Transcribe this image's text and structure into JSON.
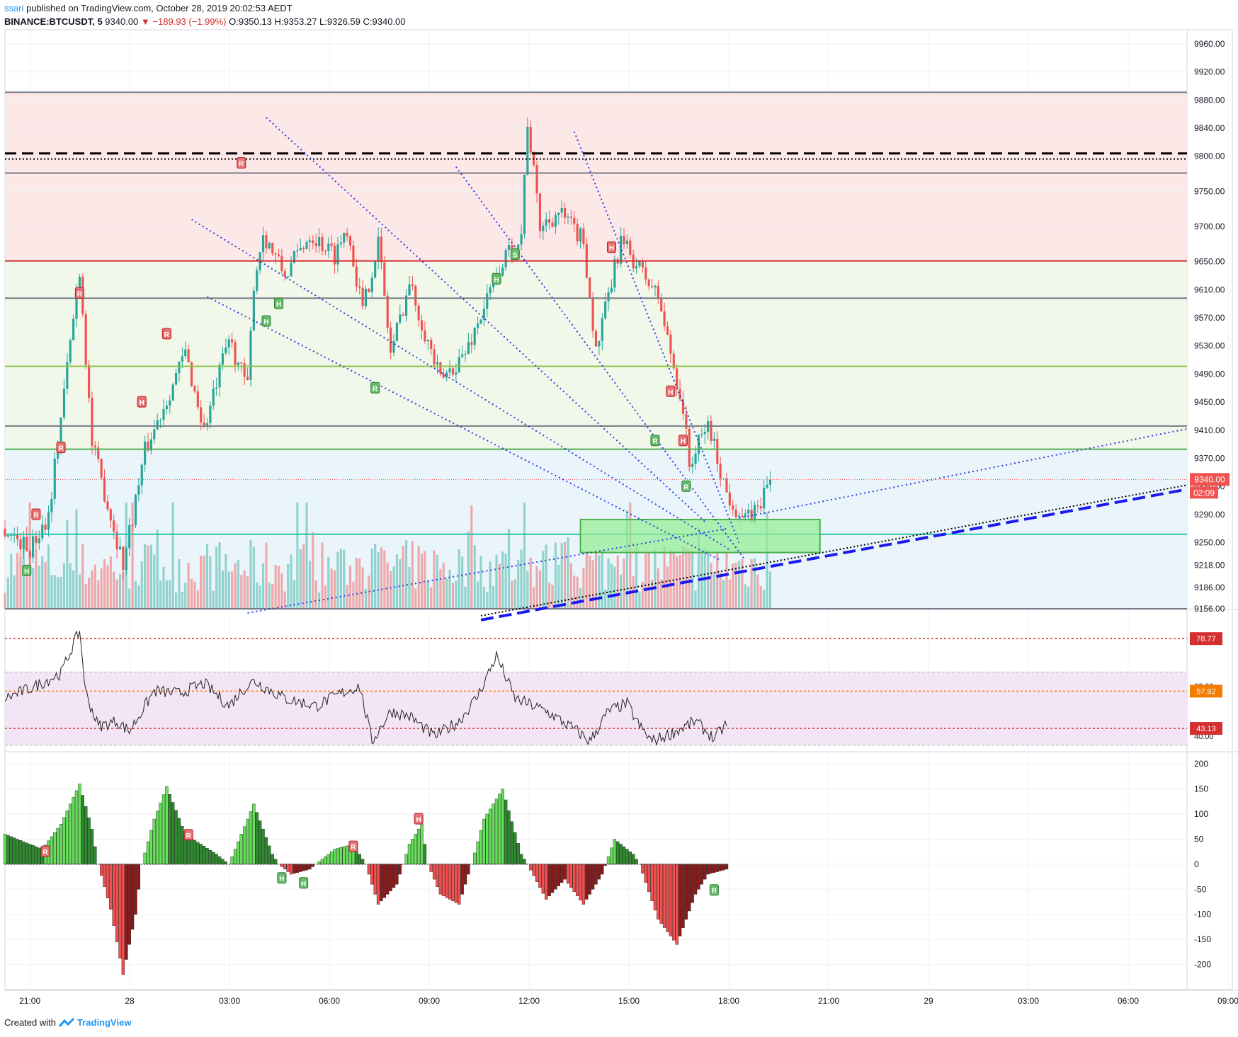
{
  "header": {
    "user": "ssari",
    "published": "published on TradingView.com, October 28, 2019 20:02:53 AEDT",
    "symbol": "BINANCE:BTCUSDT, 5",
    "last": "9340.00",
    "change_arrow": "▼",
    "change": "−189.93 (−1.99%)",
    "ohlc": "O:9350.13 H:9353.27 L:9326.59 C:9340.00"
  },
  "footer": {
    "created": "Created with",
    "brand": "TradingView",
    "logo_icon": "tradingview-logo-icon"
  },
  "colors": {
    "up": "#26a69a",
    "down": "#ef5350",
    "up_vol": "#80cbc4",
    "down_vol": "#ef9a9a",
    "blue_trend": "#1a1aee"
  },
  "chart_data": [
    {
      "type": "candlestick",
      "title": "",
      "y_ticks": [
        "9960.00",
        "9920.00",
        "9880.00",
        "9840.00",
        "9800.00",
        "9750.00",
        "9700.00",
        "9650.00",
        "9610.00",
        "9570.00",
        "9530.00",
        "9490.00",
        "9450.00",
        "9410.00",
        "9370.00",
        "9330.00",
        "9290.00",
        "9250.00",
        "9218.00",
        "9186.00",
        "9156.00"
      ],
      "x_ticks": [
        "21:00",
        "28",
        "03:00",
        "06:00",
        "09:00",
        "12:00",
        "15:00",
        "18:00",
        "21:00",
        "29",
        "03:00",
        "06:00",
        "09:00"
      ],
      "ylim": [
        9156,
        9980
      ],
      "price_label": "9340.00",
      "countdown_label": "02:09",
      "horizontal_levels": [
        {
          "price": 9891,
          "color": "#787b86",
          "style": "solid"
        },
        {
          "price": 9804,
          "color": "#000000",
          "style": "dashed"
        },
        {
          "price": 9796,
          "color": "#000000",
          "style": "dotted"
        },
        {
          "price": 9776,
          "color": "#787b86",
          "style": "solid"
        },
        {
          "price": 9651,
          "color": "#d32f2f",
          "style": "solid"
        },
        {
          "price": 9598,
          "color": "#787b86",
          "style": "solid"
        },
        {
          "price": 9501,
          "color": "#8bc34a",
          "style": "solid"
        },
        {
          "price": 9416,
          "color": "#787b86",
          "style": "solid"
        },
        {
          "price": 9383,
          "color": "#4caf50",
          "style": "solid"
        },
        {
          "price": 9262,
          "color": "#26c6a8",
          "style": "solid"
        },
        {
          "price": 9156,
          "color": "#787b86",
          "style": "solid"
        }
      ],
      "zones": [
        {
          "from": 9651,
          "to": 9891,
          "color": "#fde8e8"
        },
        {
          "from": 9383,
          "to": 9651,
          "color": "#f1f8e9"
        },
        {
          "from": 9156,
          "to": 9383,
          "color": "#eaf5fb"
        }
      ],
      "support_box": {
        "t_from": 185,
        "t_to": 262,
        "price_from": 9236,
        "price_to": 9283
      },
      "candle_series": {
        "start_price": 9270,
        "waypoints": [
          [
            0,
            9270
          ],
          [
            8,
            9240
          ],
          [
            14,
            9290
          ],
          [
            24,
            9640
          ],
          [
            28,
            9390
          ],
          [
            38,
            9220
          ],
          [
            45,
            9380
          ],
          [
            58,
            9520
          ],
          [
            64,
            9410
          ],
          [
            72,
            9540
          ],
          [
            78,
            9470
          ],
          [
            80,
            9620
          ],
          [
            83,
            9690
          ],
          [
            90,
            9630
          ],
          [
            98,
            9690
          ],
          [
            106,
            9660
          ],
          [
            110,
            9700
          ],
          [
            115,
            9580
          ],
          [
            120,
            9680
          ],
          [
            124,
            9520
          ],
          [
            130,
            9620
          ],
          [
            140,
            9480
          ],
          [
            148,
            9520
          ],
          [
            160,
            9650
          ],
          [
            166,
            9690
          ],
          [
            168,
            9850
          ],
          [
            172,
            9700
          ],
          [
            178,
            9720
          ],
          [
            186,
            9680
          ],
          [
            190,
            9520
          ],
          [
            198,
            9680
          ],
          [
            210,
            9600
          ],
          [
            214,
            9520
          ],
          [
            218,
            9440
          ],
          [
            220,
            9360
          ],
          [
            226,
            9420
          ],
          [
            232,
            9320
          ],
          [
            238,
            9280
          ],
          [
            242,
            9300
          ],
          [
            246,
            9340
          ]
        ]
      },
      "fan_lines": [
        {
          "from": [
            60,
            9710
          ],
          "to": [
            233,
            9240
          ]
        },
        {
          "from": [
            65,
            9600
          ],
          "to": [
            230,
            9225
          ]
        },
        {
          "from": [
            84,
            9855
          ],
          "to": [
            225,
            9280
          ]
        },
        {
          "from": [
            145,
            9785
          ],
          "to": [
            238,
            9225
          ]
        },
        {
          "from": [
            183,
            9835
          ],
          "to": [
            236,
            9250
          ]
        },
        {
          "from": [
            78,
            9150
          ],
          "to": [
            232,
            9270
          ]
        },
        {
          "from": [
            236,
            9285
          ],
          "to": [
            380,
            9412
          ]
        }
      ],
      "blue_trend_line": {
        "from": [
          153,
          9140
        ],
        "to": [
          380,
          9326
        ]
      },
      "black_trend_line": {
        "from": [
          153,
          9146
        ],
        "to": [
          380,
          9332
        ]
      },
      "volume": {
        "scale": "relative"
      },
      "divergence_markers": [
        {
          "t": 7,
          "price": 9210,
          "label": "H",
          "kind": "bull"
        },
        {
          "t": 10,
          "price": 9290,
          "label": "R",
          "kind": "bear"
        },
        {
          "t": 18,
          "price": 9385,
          "label": "R",
          "kind": "bear"
        },
        {
          "t": 24,
          "price": 9605,
          "label": "R",
          "kind": "bear"
        },
        {
          "t": 44,
          "price": 9450,
          "label": "H",
          "kind": "bear"
        },
        {
          "t": 52,
          "price": 9547,
          "label": "R",
          "kind": "bear"
        },
        {
          "t": 76,
          "price": 9790,
          "label": "R",
          "kind": "bear"
        },
        {
          "t": 84,
          "price": 9565,
          "label": "H",
          "kind": "bull"
        },
        {
          "t": 88,
          "price": 9590,
          "label": "H",
          "kind": "bull"
        },
        {
          "t": 119,
          "price": 9470,
          "label": "R",
          "kind": "bull"
        },
        {
          "t": 158,
          "price": 9625,
          "label": "H",
          "kind": "bull"
        },
        {
          "t": 164,
          "price": 9660,
          "label": "S",
          "kind": "bull"
        },
        {
          "t": 195,
          "price": 9670,
          "label": "H",
          "kind": "bear"
        },
        {
          "t": 209,
          "price": 9395,
          "label": "R",
          "kind": "bull"
        },
        {
          "t": 214,
          "price": 9465,
          "label": "H",
          "kind": "bear"
        },
        {
          "t": 218,
          "price": 9395,
          "label": "H",
          "kind": "bear"
        },
        {
          "t": 219,
          "price": 9330,
          "label": "R",
          "kind": "bull"
        }
      ]
    },
    {
      "type": "line",
      "title": "",
      "y_ticks": [
        "60.00",
        "40.00"
      ],
      "ylim": [
        35,
        85
      ],
      "band": [
        40,
        60
      ],
      "levels": [
        {
          "value": 78.77,
          "label": "78.77",
          "color": "#d32f2f"
        },
        {
          "value": 57.92,
          "label": "57.92",
          "color": "#f57c00"
        },
        {
          "value": 43.13,
          "label": "43.13",
          "color": "#d32f2f"
        }
      ],
      "waypoints": [
        [
          0,
          55
        ],
        [
          10,
          60
        ],
        [
          18,
          65
        ],
        [
          24,
          82
        ],
        [
          26,
          57
        ],
        [
          30,
          44
        ],
        [
          36,
          46
        ],
        [
          40,
          42
        ],
        [
          48,
          58
        ],
        [
          56,
          57
        ],
        [
          64,
          61
        ],
        [
          72,
          52
        ],
        [
          76,
          58
        ],
        [
          80,
          62
        ],
        [
          90,
          55
        ],
        [
          100,
          52
        ],
        [
          108,
          57
        ],
        [
          114,
          60
        ],
        [
          118,
          38
        ],
        [
          124,
          50
        ],
        [
          130,
          48
        ],
        [
          138,
          40
        ],
        [
          146,
          46
        ],
        [
          152,
          56
        ],
        [
          158,
          72
        ],
        [
          164,
          55
        ],
        [
          174,
          50
        ],
        [
          184,
          42
        ],
        [
          188,
          38
        ],
        [
          194,
          50
        ],
        [
          200,
          53
        ],
        [
          204,
          44
        ],
        [
          208,
          38
        ],
        [
          214,
          41
        ],
        [
          222,
          46
        ],
        [
          228,
          39
        ],
        [
          232,
          45
        ]
      ]
    },
    {
      "type": "bar",
      "title": "",
      "y_ticks": [
        "200",
        "150",
        "100",
        "50",
        "0",
        "-50",
        "-100",
        "-150",
        "-200"
      ],
      "ylim": [
        -250,
        220
      ],
      "waypoints": [
        [
          0,
          60
        ],
        [
          12,
          30
        ],
        [
          18,
          80
        ],
        [
          24,
          160
        ],
        [
          28,
          70
        ],
        [
          30,
          0
        ],
        [
          34,
          -90
        ],
        [
          38,
          -220
        ],
        [
          42,
          -100
        ],
        [
          44,
          0
        ],
        [
          48,
          90
        ],
        [
          52,
          155
        ],
        [
          58,
          60
        ],
        [
          68,
          20
        ],
        [
          72,
          0
        ],
        [
          76,
          60
        ],
        [
          80,
          120
        ],
        [
          86,
          20
        ],
        [
          88,
          0
        ],
        [
          92,
          -20
        ],
        [
          98,
          -10
        ],
        [
          102,
          10
        ],
        [
          106,
          30
        ],
        [
          112,
          40
        ],
        [
          116,
          0
        ],
        [
          120,
          -80
        ],
        [
          126,
          -40
        ],
        [
          130,
          40
        ],
        [
          134,
          80
        ],
        [
          136,
          0
        ],
        [
          140,
          -60
        ],
        [
          146,
          -80
        ],
        [
          150,
          0
        ],
        [
          154,
          90
        ],
        [
          160,
          150
        ],
        [
          166,
          20
        ],
        [
          168,
          0
        ],
        [
          174,
          -70
        ],
        [
          180,
          -30
        ],
        [
          186,
          -80
        ],
        [
          192,
          -20
        ],
        [
          196,
          50
        ],
        [
          202,
          20
        ],
        [
          204,
          0
        ],
        [
          210,
          -110
        ],
        [
          216,
          -160
        ],
        [
          222,
          -60
        ],
        [
          226,
          -20
        ],
        [
          232,
          -10
        ]
      ],
      "divergence_markers": [
        {
          "t": 13,
          "value": 25,
          "label": "R",
          "kind": "bear"
        },
        {
          "t": 59,
          "value": 58,
          "label": "R",
          "kind": "bear"
        },
        {
          "t": 89,
          "value": -28,
          "label": "H",
          "kind": "bull"
        },
        {
          "t": 96,
          "value": -38,
          "label": "H",
          "kind": "bull"
        },
        {
          "t": 112,
          "value": 35,
          "label": "R",
          "kind": "bear"
        },
        {
          "t": 133,
          "value": 90,
          "label": "H",
          "kind": "bear"
        },
        {
          "t": 228,
          "value": -52,
          "label": "R",
          "kind": "bull"
        }
      ]
    }
  ]
}
